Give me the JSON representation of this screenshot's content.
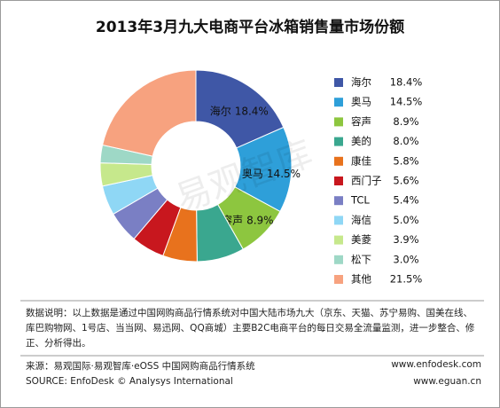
{
  "chart_data": {
    "type": "donut",
    "title": "2013年3月九大电商平台冰箱销售量市场份额",
    "categories": [
      "海尔",
      "奥马",
      "容声",
      "美的",
      "康佳",
      "西门子",
      "TCL",
      "海信",
      "美菱",
      "松下",
      "其他"
    ],
    "values": [
      18.4,
      14.5,
      8.9,
      8.0,
      5.8,
      5.6,
      5.4,
      5.0,
      3.9,
      3.0,
      21.5
    ],
    "value_labels": [
      "18.4%",
      "14.5%",
      "8.9%",
      "8.0%",
      "5.8%",
      "5.6%",
      "5.4%",
      "5.0%",
      "3.9%",
      "3.0%",
      "21.5%"
    ],
    "colors": [
      "#3f57a6",
      "#2e9fd9",
      "#8dc63f",
      "#3aa78f",
      "#e8721d",
      "#c8171e",
      "#7a7fc4",
      "#8fd7f5",
      "#c6e88c",
      "#9ed8c6",
      "#f7a27f"
    ],
    "legend": "right",
    "watermark": "易观智库",
    "note": "数据说明：以上数据是通过中国网购商品行情系统对中国大陆市场九大（京东、天猫、苏宁易购、国美在线、库巴购物网、1号店、当当网、易迅网、QQ商城）主要B2C电商平台的每日交易全流量监测，进一步整合、修正、分析得出。",
    "source_cn": "来源：易观国际·易观智库·eOSS 中国网购商品行情系统",
    "source_en": "SOURCE: EnfoDesk © Analysys International",
    "site_1": "www.enfodesk.com",
    "site_2": "www.eguan.cn"
  }
}
